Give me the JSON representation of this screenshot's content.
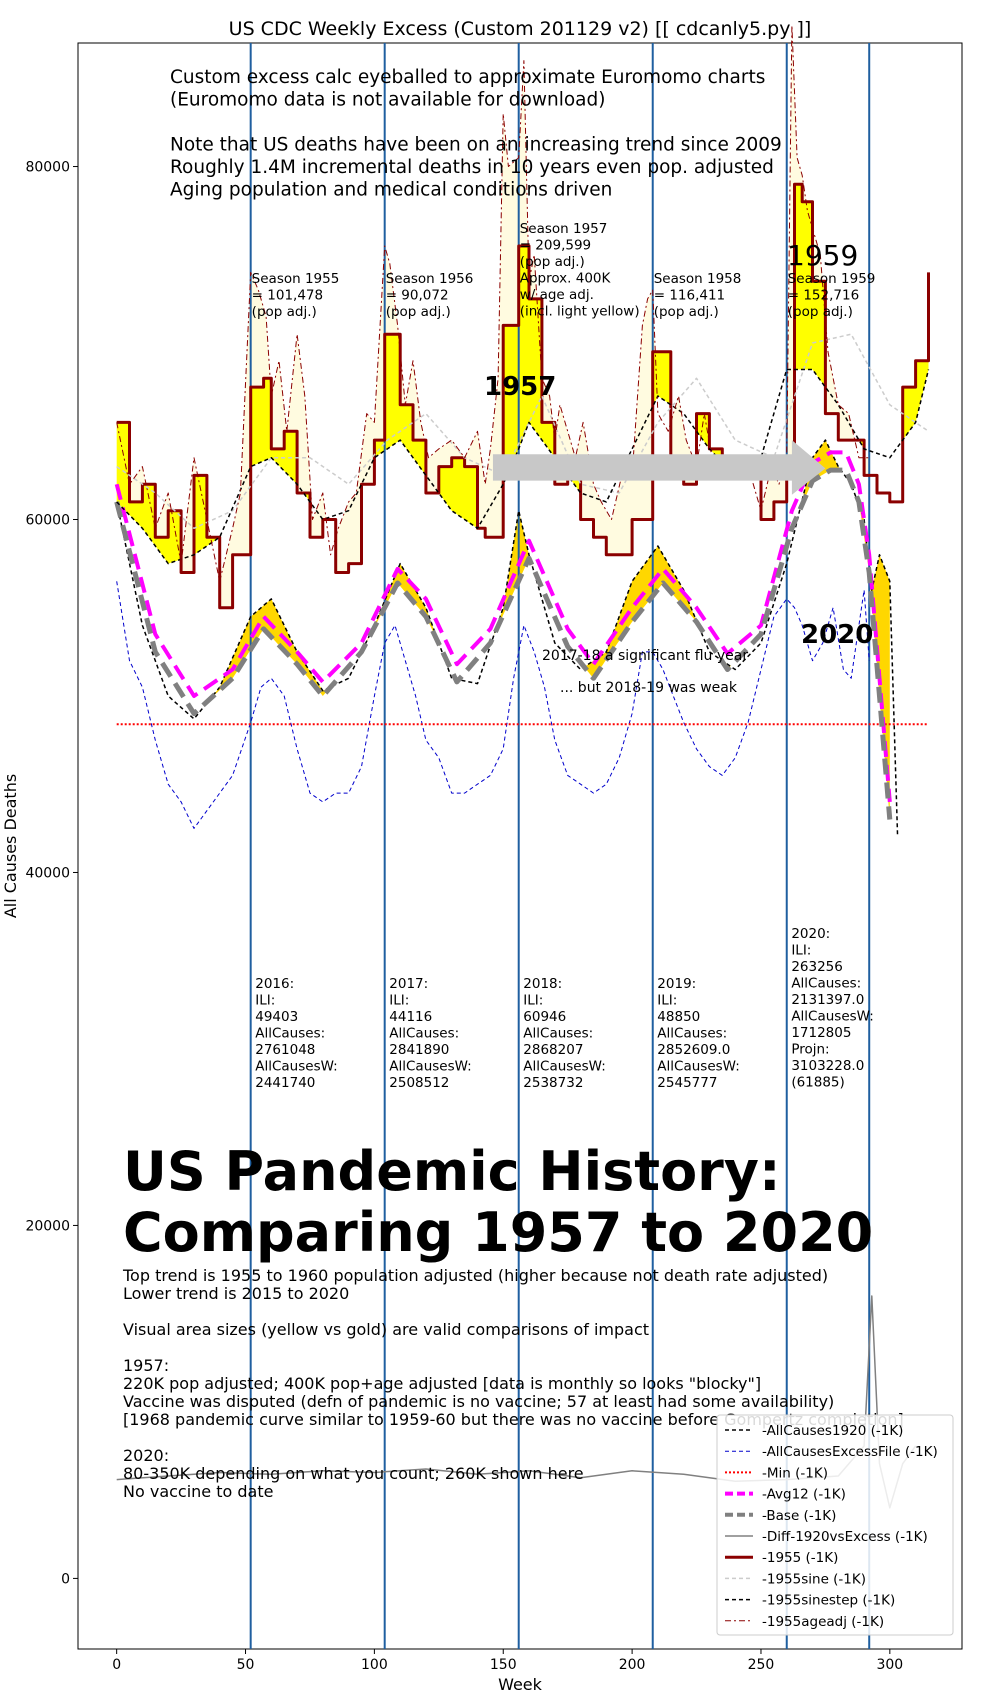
{
  "chart_data": {
    "type": "line",
    "title": "US CDC Weekly Excess (Custom 201129 v2) [[ cdcanly5.py ]]",
    "xlabel": "Week",
    "ylabel": "All Causes Deaths",
    "xlim": [
      -15,
      328
    ],
    "ylim": [
      -4000,
      87000
    ],
    "xticks": [
      0,
      50,
      100,
      150,
      200,
      250,
      300
    ],
    "yticks": [
      0,
      20000,
      40000,
      60000,
      80000
    ],
    "grid": false,
    "legend_position": "bottom-right",
    "vlines": [
      52,
      104,
      156,
      208,
      260,
      292
    ],
    "min_line": 48400,
    "series": [
      {
        "name": "-AllCauses1920 (-1K)",
        "color": "#000000",
        "style": "dashed",
        "width": 1.5,
        "x": [
          0,
          10,
          20,
          30,
          40,
          52,
          60,
          70,
          80,
          90,
          100,
          110,
          120,
          130,
          140,
          150,
          156,
          160,
          170,
          180,
          190,
          200,
          210,
          220,
          230,
          240,
          250,
          260,
          270,
          275,
          280,
          285,
          290,
          293,
          296,
          300,
          303
        ],
        "y": [
          61000,
          54000,
          50000,
          48700,
          50500,
          54500,
          55500,
          52500,
          50300,
          51000,
          54000,
          57500,
          55000,
          51000,
          50700,
          55000,
          60500,
          58000,
          53000,
          51500,
          52500,
          56500,
          58500,
          56000,
          52500,
          51500,
          53000,
          57500,
          63500,
          64500,
          63000,
          62000,
          60000,
          56000,
          58000,
          56500,
          42000
        ]
      },
      {
        "name": "-AllCausesExcessFile (-1K)",
        "color": "#0000cc",
        "style": "dashed",
        "width": 1,
        "x": [
          0,
          5,
          10,
          15,
          20,
          25,
          30,
          35,
          40,
          45,
          52,
          56,
          60,
          65,
          70,
          75,
          80,
          85,
          90,
          95,
          100,
          104,
          108,
          112,
          116,
          120,
          125,
          130,
          135,
          140,
          145,
          150,
          154,
          158,
          162,
          166,
          170,
          175,
          180,
          185,
          190,
          195,
          200,
          204,
          208,
          212,
          216,
          220,
          225,
          230,
          235,
          240,
          245,
          250,
          255,
          260,
          263,
          266,
          270,
          274,
          278,
          282,
          285,
          288,
          290,
          292
        ],
        "y": [
          56500,
          52000,
          50500,
          47500,
          45000,
          44000,
          42500,
          43500,
          44500,
          45500,
          48500,
          50500,
          51000,
          50000,
          47000,
          44500,
          44000,
          44500,
          44500,
          46000,
          50000,
          53000,
          54000,
          52000,
          50000,
          47500,
          46500,
          44500,
          44500,
          45000,
          45500,
          47000,
          51000,
          54000,
          52500,
          50500,
          47500,
          45500,
          45000,
          44500,
          45000,
          46500,
          49000,
          52500,
          52500,
          51500,
          50000,
          48500,
          47000,
          46000,
          45500,
          46500,
          48500,
          51500,
          54500,
          55500,
          55000,
          54000,
          52000,
          53000,
          55000,
          51500,
          51000,
          54000,
          56000,
          52000
        ]
      },
      {
        "name": "-Min (-1K)",
        "color": "#ff0000",
        "style": "dotted",
        "width": 2,
        "x": [
          0,
          315
        ],
        "y": [
          48400,
          48400
        ]
      },
      {
        "name": "-Avg12 (-1K)",
        "color": "#ff00ff",
        "style": "dashed",
        "width": 4,
        "x": [
          0,
          15,
          30,
          45,
          57,
          70,
          80,
          95,
          109,
          120,
          132,
          145,
          160,
          175,
          185,
          200,
          212,
          225,
          237,
          250,
          262,
          270,
          277,
          283,
          288,
          292,
          296,
          300
        ],
        "y": [
          62000,
          53500,
          50000,
          51500,
          54500,
          52500,
          50800,
          53000,
          57200,
          55500,
          51800,
          53800,
          58800,
          53800,
          51800,
          55000,
          57200,
          55000,
          52400,
          54000,
          60500,
          63200,
          63800,
          63800,
          62000,
          58000,
          51000,
          44000
        ]
      },
      {
        "name": "-Base (-1K)",
        "color": "#808080",
        "style": "dashed",
        "width": 5,
        "x": [
          0,
          15,
          30,
          45,
          57,
          70,
          80,
          95,
          109,
          120,
          132,
          145,
          160,
          175,
          185,
          200,
          212,
          225,
          237,
          250,
          262,
          270,
          277,
          283,
          288,
          292,
          296,
          300
        ],
        "y": [
          61000,
          52500,
          49000,
          51000,
          53800,
          51800,
          50000,
          52500,
          56400,
          54500,
          50800,
          53000,
          57800,
          52800,
          51000,
          54200,
          56400,
          54200,
          51500,
          53500,
          59500,
          62200,
          62800,
          62800,
          61000,
          57000,
          50000,
          43000
        ]
      },
      {
        "name": "-Diff-1920vsExcess (-1K)",
        "color": "#808080",
        "style": "solid",
        "width": 1.5,
        "x": [
          0,
          20,
          40,
          60,
          80,
          100,
          120,
          140,
          160,
          180,
          200,
          220,
          240,
          260,
          280,
          290,
          293,
          296,
          300,
          305,
          310
        ],
        "y": [
          5600,
          5800,
          6000,
          5900,
          6100,
          6000,
          6200,
          5900,
          6100,
          5700,
          6100,
          5900,
          5500,
          5600,
          5800,
          7500,
          16000,
          6500,
          4000,
          6500,
          7500
        ]
      },
      {
        "name": "-1955 (-1K)",
        "color": "#8b0000",
        "style": "step",
        "width": 3,
        "x": [
          0,
          5,
          10,
          15,
          20,
          25,
          30,
          35,
          40,
          45,
          52,
          57,
          60,
          65,
          70,
          75,
          80,
          85,
          90,
          95,
          100,
          104,
          110,
          115,
          120,
          125,
          130,
          135,
          140,
          143,
          150,
          156,
          160,
          165,
          170,
          175,
          180,
          185,
          190,
          200,
          208,
          215,
          220,
          225,
          230,
          235,
          240,
          245,
          250,
          255,
          260,
          263,
          266,
          270,
          275,
          280,
          285,
          290,
          295,
          300,
          305,
          310,
          315
        ],
        "y": [
          65500,
          61000,
          62000,
          59000,
          60500,
          57000,
          62500,
          59000,
          55000,
          58000,
          67500,
          68000,
          64000,
          65000,
          61500,
          59000,
          60000,
          57000,
          57500,
          62000,
          64500,
          70500,
          66500,
          64500,
          61500,
          63000,
          63500,
          63000,
          59500,
          59000,
          71000,
          75500,
          72500,
          65500,
          62000,
          63000,
          60000,
          59000,
          58000,
          60000,
          69500,
          62500,
          62000,
          66000,
          64000,
          63500,
          63000,
          62500,
          60000,
          61000,
          62500,
          79000,
          78000,
          73500,
          66000,
          64500,
          64500,
          62500,
          61500,
          61000,
          67500,
          69000,
          74000
        ]
      },
      {
        "name": "-1955sine (-1K)",
        "color": "#cccccc",
        "style": "dashed",
        "width": 1.5,
        "x": [
          0,
          15,
          30,
          45,
          60,
          75,
          90,
          105,
          120,
          135,
          150,
          165,
          180,
          195,
          210,
          225,
          240,
          255,
          270,
          285,
          300,
          315
        ],
        "y": [
          63000,
          61500,
          59500,
          60500,
          63500,
          63500,
          62000,
          64500,
          66000,
          63500,
          62500,
          67000,
          62000,
          61500,
          65500,
          68000,
          64500,
          63500,
          70000,
          70500,
          66500,
          65000
        ]
      },
      {
        "name": "-1955sinestep (-1K)",
        "color": "#000000",
        "style": "dashed",
        "width": 1.5,
        "x": [
          0,
          10,
          20,
          30,
          40,
          52,
          60,
          70,
          80,
          90,
          100,
          110,
          120,
          130,
          140,
          150,
          156,
          160,
          170,
          180,
          190,
          200,
          210,
          220,
          230,
          240,
          250,
          260,
          270,
          280,
          290,
          300,
          310,
          315
        ],
        "y": [
          61000,
          59500,
          57500,
          58000,
          59000,
          63000,
          63500,
          62000,
          60000,
          60500,
          63500,
          64500,
          62500,
          60500,
          59500,
          62000,
          64000,
          65500,
          63500,
          61500,
          61000,
          64000,
          67000,
          66000,
          64000,
          62500,
          63500,
          68500,
          68500,
          66500,
          64000,
          63500,
          65500,
          68500
        ]
      },
      {
        "name": "-1955ageadj (-1K)",
        "color": "#8b0000",
        "style": "dashdot",
        "width": 1,
        "x": [
          0,
          5,
          10,
          15,
          20,
          25,
          30,
          35,
          40,
          45,
          48,
          52,
          55,
          58,
          60,
          63,
          66,
          70,
          73,
          76,
          80,
          83,
          86,
          90,
          93,
          97,
          100,
          104,
          106,
          109,
          112,
          115,
          118,
          121,
          125,
          130,
          135,
          140,
          143,
          145,
          148,
          150,
          152,
          156,
          158,
          160,
          162,
          165,
          168,
          170,
          172,
          175,
          178,
          181,
          185,
          188,
          192,
          196,
          200,
          204,
          206,
          208,
          210,
          214,
          218,
          221,
          225,
          228,
          231,
          235,
          238,
          242,
          246,
          250,
          254,
          257,
          260,
          262,
          264,
          266,
          268,
          270,
          273,
          276,
          280,
          284,
          288,
          292
        ],
        "y": [
          65500,
          62000,
          63000,
          59500,
          61500,
          57500,
          63500,
          60000,
          56500,
          59500,
          61500,
          74000,
          73000,
          71500,
          67000,
          69000,
          65000,
          70500,
          67000,
          60000,
          61500,
          58000,
          59500,
          61000,
          61500,
          66000,
          65500,
          75500,
          74500,
          71000,
          66500,
          69000,
          65500,
          63500,
          64000,
          64500,
          63500,
          65000,
          62000,
          64000,
          68000,
          83000,
          80000,
          80500,
          86000,
          73500,
          75000,
          68000,
          67000,
          64500,
          66500,
          65000,
          63500,
          65500,
          62000,
          61000,
          60000,
          62500,
          62500,
          71000,
          72500,
          73000,
          66000,
          65000,
          67000,
          64500,
          63000,
          66000,
          63500,
          63000,
          63000,
          62500,
          62500,
          60500,
          63000,
          62000,
          63500,
          88000,
          80500,
          79500,
          77500,
          76500,
          75000,
          69500,
          66500,
          66000,
          63500,
          63500
        ]
      }
    ],
    "annotations": {
      "header": [
        "Custom excess calc eyeballed to approximate Euromomo charts",
        "(Euromomo data is not available for download)",
        "",
        "Note that US deaths have been on an increasing trend since 2009",
        "Roughly 1.4M incremental deaths in 10 years even pop. adjusted",
        "Aging population and medical conditions driven"
      ],
      "seasons": [
        {
          "x": 52,
          "lines": [
            "Season 1955",
            " = 101,478",
            "(pop adj.)"
          ]
        },
        {
          "x": 104,
          "lines": [
            "Season 1956",
            " = 90,072",
            "(pop adj.)"
          ]
        },
        {
          "x": 156,
          "lines": [
            "Season 1957",
            " = 209,599",
            "(pop adj.)",
            "Approx. 400K",
            "w/ age adj.",
            "(incl. light yellow)"
          ]
        },
        {
          "x": 208,
          "lines": [
            "Season 1958",
            " = 116,411",
            "(pop adj.)"
          ]
        },
        {
          "x": 260,
          "lines": [
            "Season 1959",
            " = 152,716",
            "(pop adj.)"
          ]
        }
      ],
      "years": [
        {
          "x": 53,
          "lines": [
            "2016:",
            "ILI:",
            "49403",
            "AllCauses:",
            "2761048",
            "AllCausesW:",
            "2441740"
          ]
        },
        {
          "x": 105,
          "lines": [
            "2017:",
            "ILI:",
            "44116",
            "AllCauses:",
            "2841890",
            "AllCausesW:",
            "2508512"
          ]
        },
        {
          "x": 157,
          "lines": [
            "2018:",
            "ILI:",
            "60946",
            "AllCauses:",
            "2868207",
            "AllCausesW:",
            "2538732"
          ]
        },
        {
          "x": 209,
          "lines": [
            "2019:",
            "ILI:",
            "48850",
            "AllCauses:",
            "2852609.0",
            "AllCausesW:",
            "2545777"
          ]
        },
        {
          "x": 261,
          "lines": [
            "2020:",
            "ILI:",
            "263256",
            "AllCauses:",
            "2131397.0",
            "AllCausesW:",
            "1712805",
            "Projn:",
            "3103228.0",
            "(61885)"
          ]
        }
      ],
      "label_1957": "1957",
      "label_1959": "1959",
      "label_2020": "2020",
      "flu_note_1": "2017-18 a significant flu year",
      "flu_note_2": "... but 2018-19 was weak",
      "big_title": [
        "US Pandemic History:",
        "Comparing 1957 to 2020"
      ],
      "footer": [
        "Top trend is 1955 to 1960 population adjusted (higher because not death rate adjusted)",
        "Lower trend is 2015 to 2020",
        "",
        "Visual area sizes (yellow vs gold) are valid comparisons of impact",
        "",
        "1957:",
        "220K pop adjusted; 400K pop+age adjusted [data is monthly so looks \"blocky\"]",
        "Vaccine was disputed (defn of pandemic is no vaccine; 57 at least had some availability)",
        "  [1968 pandemic curve similar to 1959-60 but there was no vaccine before Gompertz completion]",
        "",
        "2020:",
        "80-350K depending on what you count; 260K shown here",
        "No vaccine to date"
      ]
    }
  },
  "colors": {
    "yellow_fill": "#ffff00",
    "gold_fill": "#ffd700",
    "light_yellow": "#fffbe0",
    "vline": "#1f5fa0"
  }
}
